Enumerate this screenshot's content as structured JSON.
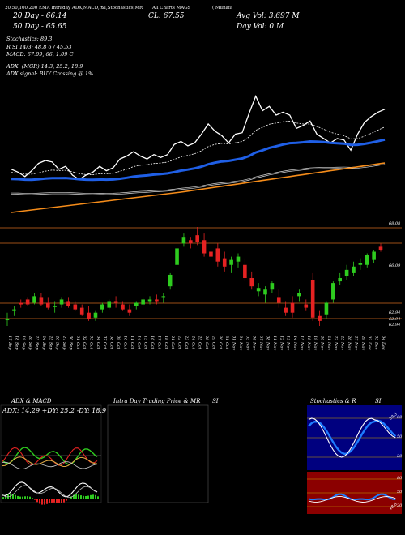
{
  "header": {
    "ema_line": "20,50,100,200 EMA Intraday ADX,MACD,R",
    "stoch_line": "SI,Stochastics,MR",
    "charts_line": "All Charts MAGS",
    "provider": "( Munafa",
    "close": "CL: 67.55",
    "day_20": "20  Day - 66.14",
    "day_50": "50  Day - 65.65",
    "avg_vol": "Avg Vol: 3.697 M",
    "day_vol": "Day Vol: 0   M"
  },
  "indicators": {
    "stochastics": "Stochastics: 89.3",
    "rsi": "R         SI 14/3: 48.8            6 / 45.53",
    "macd": "MACD: 67.09, 66, 1.09 C",
    "adx": "ADX:                           (MGR) 14.3, 25.2, 18.9",
    "adx_signal": "ADX   signal:                                BUY Crossing @ 1%"
  },
  "price_labels": [
    "68.08",
    "66.09",
    "62.94",
    "62.94",
    "62.94"
  ],
  "dates": [
    "17 Sep",
    "18 Sep",
    "19 Sep",
    "20 Sep",
    "23 Sep",
    "24 Sep",
    "25 Sep",
    "26 Sep",
    "27 Sep",
    "30 Sep",
    "01 Oct",
    "02 Oct",
    "03 Oct",
    "04 Oct",
    "07 Oct",
    "08 Oct",
    "09 Oct",
    "10 Oct",
    "11 Oct",
    "14 Oct",
    "15 Oct",
    "16 Oct",
    "17 Oct",
    "18 Oct",
    "21 Oct",
    "22 Oct",
    "23 Oct",
    "24 Oct",
    "25 Oct",
    "28 Oct",
    "29 Oct",
    "30 Oct",
    "31 Oct",
    "01 Nov",
    "04 Nov",
    "05 Nov",
    "06 Nov",
    "07 Nov",
    "08 Nov",
    "11 Nov",
    "12 Nov",
    "13 Nov",
    "14 Nov",
    "15 Nov",
    "18 Nov",
    "19 Nov",
    "20 Nov",
    "21 Nov",
    "22 Nov",
    "25 Nov",
    "26 Nov",
    "27 Nov",
    "29 Nov",
    "02 Dec",
    "03 Dec",
    "04 Dec"
  ],
  "panels": {
    "adx_title": "ADX  & MACD",
    "adx_values": "ADX: 14.29  +DY: 25.2  -DY: 18.9",
    "intraday_title": "Intra  Day Trading Price  & MR",
    "intraday_si": "SI",
    "stoch_title": "Stochastics & R",
    "stoch_si": "SI",
    "stoch_levels": [
      "80",
      "50",
      "20"
    ],
    "rsi_levels": [
      "80",
      "50",
      "20"
    ],
    "stoch_end_label": "89.3",
    "rsi_end_label": "48.8"
  },
  "colors": {
    "bull": "#2ecc1f",
    "bear": "#e52222",
    "ema20": "#ffffff",
    "ema50": "#1f5fe6",
    "ema100": "#d9d9d9",
    "ema200": "#f58c1a",
    "level": "#d2691e",
    "rsi_bg": "#8b0000",
    "stoch_bg": "#00007f"
  },
  "chart_data": [
    {
      "type": "line",
      "title": "",
      "series": [
        {
          "name": "",
          "values": [
            63.4,
            63.2,
            62.9,
            63.3,
            63.8,
            64.0,
            63.9,
            63.4,
            63.6,
            63.0,
            62.7,
            63.0,
            63.2,
            63.6,
            63.3,
            63.5,
            64.1,
            64.3,
            64.6,
            64.3,
            64.1,
            64.4,
            64.2,
            64.4,
            65.1,
            65.3,
            65.0,
            65.2,
            65.8,
            66.5,
            66.0,
            65.7,
            65.2,
            65.8,
            65.9,
            67.2,
            68.4,
            67.4,
            67.7,
            67.1,
            67.3,
            67.1,
            66.2,
            66.4,
            66.7,
            65.8,
            65.5,
            65.2,
            65.5,
            65.4,
            64.7,
            65.8,
            66.6,
            67.0,
            67.3,
            67.5
          ]
        }
      ]
    },
    {
      "type": "bar",
      "title": "",
      "ylim": [
        62.5,
        68.6
      ],
      "candles": [
        [
          63.0,
          63.4,
          62.6,
          63.0
        ],
        [
          63.5,
          63.8,
          63.2,
          63.6
        ],
        [
          64.0,
          64.2,
          63.7,
          63.9
        ],
        [
          64.2,
          64.3,
          63.8,
          63.9
        ],
        [
          64.0,
          64.6,
          63.9,
          64.4
        ],
        [
          64.3,
          64.6,
          63.8,
          63.9
        ],
        [
          64.0,
          64.3,
          63.6,
          63.7
        ],
        [
          63.8,
          64.1,
          63.4,
          63.8
        ],
        [
          63.9,
          64.3,
          63.7,
          64.2
        ],
        [
          64.1,
          64.3,
          63.7,
          63.8
        ],
        [
          63.9,
          64.1,
          63.5,
          63.6
        ],
        [
          63.7,
          63.9,
          63.2,
          63.3
        ],
        [
          63.4,
          63.8,
          62.9,
          63.0
        ],
        [
          63.1,
          63.5,
          62.9,
          63.4
        ],
        [
          63.6,
          64.0,
          63.4,
          63.9
        ],
        [
          63.7,
          64.2,
          63.6,
          64.1
        ],
        [
          64.1,
          64.4,
          63.7,
          64.0
        ],
        [
          63.9,
          64.1,
          63.5,
          63.6
        ],
        [
          63.6,
          63.9,
          63.2,
          63.4
        ],
        [
          63.8,
          64.1,
          63.6,
          64.0
        ],
        [
          63.9,
          64.3,
          63.8,
          64.2
        ],
        [
          64.1,
          64.4,
          63.9,
          64.2
        ],
        [
          64.2,
          64.5,
          63.9,
          64.1
        ],
        [
          64.3,
          64.6,
          64.0,
          64.4
        ],
        [
          65.0,
          65.8,
          64.8,
          65.7
        ],
        [
          66.3,
          67.6,
          66.1,
          67.3
        ],
        [
          67.6,
          68.2,
          67.4,
          68.0
        ],
        [
          67.8,
          68.0,
          67.3,
          67.6
        ],
        [
          68.1,
          68.6,
          67.5,
          67.7
        ],
        [
          67.8,
          68.2,
          66.8,
          67.0
        ],
        [
          67.1,
          67.4,
          66.6,
          66.8
        ],
        [
          67.3,
          67.6,
          66.2,
          66.5
        ],
        [
          66.7,
          67.1,
          65.9,
          66.2
        ],
        [
          66.3,
          66.8,
          65.8,
          66.6
        ],
        [
          66.5,
          67.0,
          66.1,
          66.8
        ],
        [
          66.3,
          66.7,
          65.3,
          65.5
        ],
        [
          65.5,
          65.9,
          64.8,
          65.0
        ],
        [
          64.7,
          65.2,
          64.4,
          64.9
        ],
        [
          64.5,
          65.0,
          64.0,
          64.8
        ],
        [
          64.8,
          65.3,
          64.6,
          65.2
        ],
        [
          64.3,
          64.8,
          63.7,
          64.0
        ],
        [
          63.7,
          64.1,
          63.2,
          63.4
        ],
        [
          64.0,
          64.4,
          63.1,
          63.4
        ],
        [
          64.4,
          64.8,
          64.1,
          64.6
        ],
        [
          63.9,
          64.2,
          63.5,
          63.7
        ],
        [
          65.4,
          65.8,
          62.9,
          63.1
        ],
        [
          63.2,
          63.5,
          62.6,
          62.9
        ],
        [
          63.3,
          64.1,
          63.0,
          64.0
        ],
        [
          64.2,
          65.3,
          64.0,
          65.2
        ],
        [
          65.3,
          65.8,
          65.1,
          65.5
        ],
        [
          65.6,
          66.3,
          65.4,
          66.0
        ],
        [
          65.8,
          66.5,
          65.6,
          66.2
        ],
        [
          66.3,
          66.7,
          66.0,
          66.4
        ],
        [
          66.3,
          67.0,
          66.1,
          66.9
        ],
        [
          66.6,
          67.2,
          66.4,
          67.1
        ],
        [
          67.4,
          67.6,
          67.1,
          67.2
        ]
      ]
    }
  ]
}
